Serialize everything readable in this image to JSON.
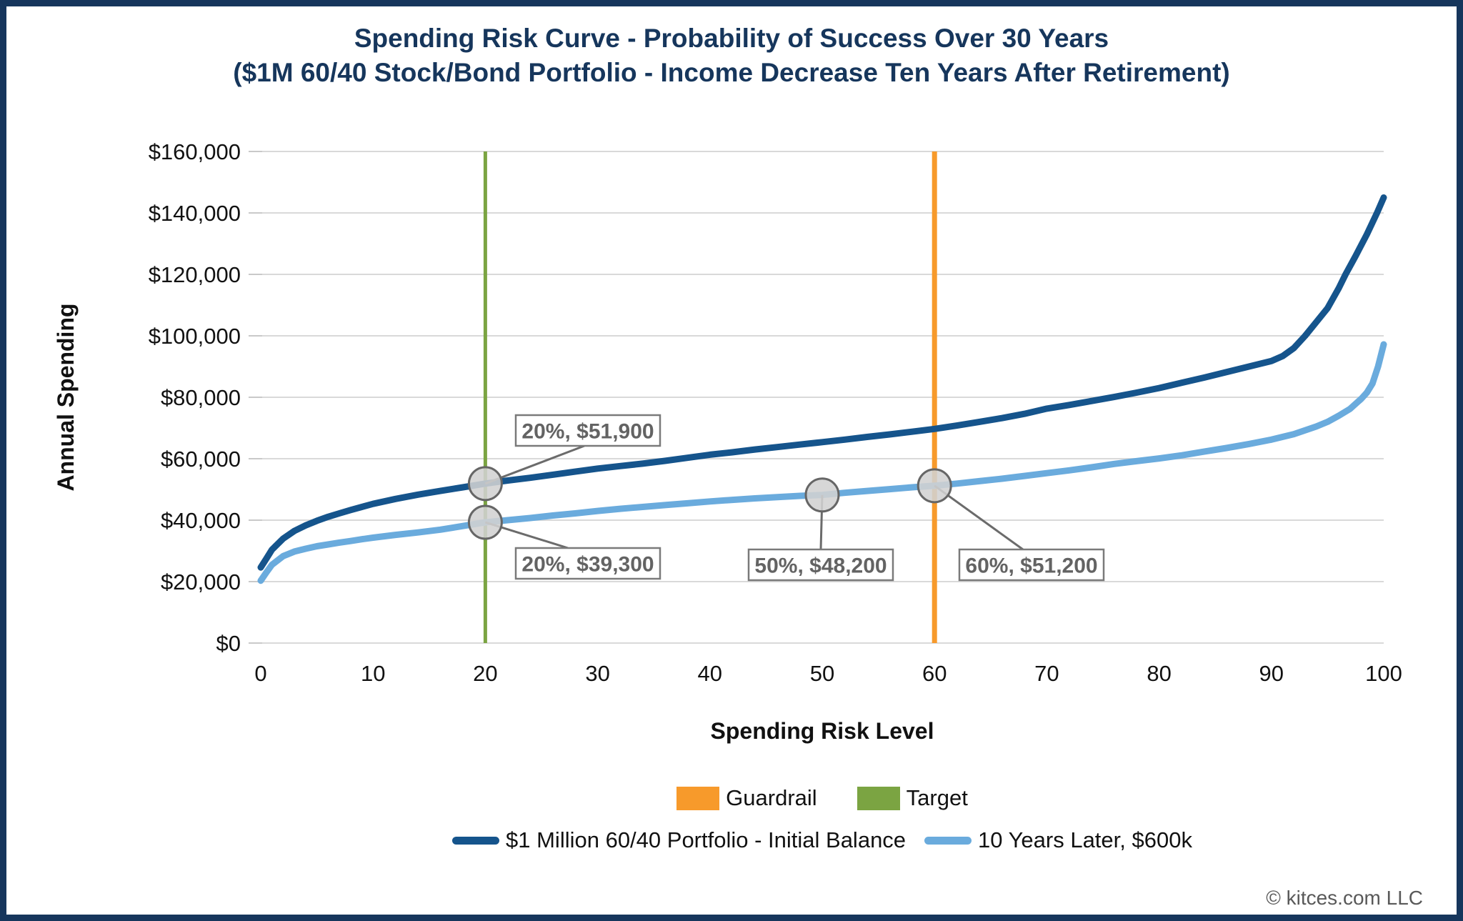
{
  "header": {
    "title_line1": "Spending Risk Curve - Probability of Success Over 30 Years",
    "title_line2": "($1M 60/40 Stock/Bond Portfolio - Income Decrease Ten Years After Retirement)"
  },
  "footer": {
    "copyright": "© kitces.com LLC"
  },
  "colors": {
    "navy": "#16365c",
    "dark_blue": "#15548c",
    "light_blue": "#6aabdd",
    "orange": "#f79a2b",
    "green": "#7ba442",
    "gridline": "#d9d9d9",
    "tick_mark": "#c9c9c9",
    "axis_text": "#111111",
    "annotation_text": "#636363",
    "annotation_border": "#7a7a7a",
    "callout_line": "#6b6b6b",
    "marker_fill": "#d2d2d2",
    "marker_stroke": "#666666",
    "footer_gray": "#595959"
  },
  "legend": {
    "row1": [
      {
        "label": "Guardrail",
        "color": "#f79a2b"
      },
      {
        "label": "Target",
        "color": "#7ba442"
      }
    ],
    "row2": [
      {
        "label": "$1 Million 60/40 Portfolio - Initial Balance",
        "color": "#15548c"
      },
      {
        "label": "10 Years Later, $600k",
        "color": "#6aabdd"
      }
    ]
  },
  "chart_data": {
    "type": "line",
    "title": "Spending Risk Curve - Probability of Success Over 30 Years ($1M 60/40 Stock/Bond Portfolio - Income Decrease Ten Years After Retirement)",
    "xlabel": "Spending Risk Level",
    "ylabel": "Annual Spending",
    "xlim": [
      0,
      100
    ],
    "ylim": [
      0,
      160000
    ],
    "grid": "horizontal",
    "legend_position": "bottom",
    "x_ticks": [
      0,
      10,
      20,
      30,
      40,
      50,
      60,
      70,
      80,
      90,
      100
    ],
    "y_ticks": [
      {
        "value": 0,
        "label": "$0"
      },
      {
        "value": 20000,
        "label": "$20,000"
      },
      {
        "value": 40000,
        "label": "$40,000"
      },
      {
        "value": 60000,
        "label": "$60,000"
      },
      {
        "value": 80000,
        "label": "$80,000"
      },
      {
        "value": 100000,
        "label": "$100,000"
      },
      {
        "value": 120000,
        "label": "$120,000"
      },
      {
        "value": 140000,
        "label": "$140,000"
      },
      {
        "value": 160000,
        "label": "$160,000"
      }
    ],
    "vlines": [
      {
        "name": "Target",
        "x": 20,
        "color": "#7ba442",
        "width": 5
      },
      {
        "name": "Guardrail",
        "x": 60,
        "color": "#f79a2b",
        "width": 7
      }
    ],
    "series": [
      {
        "name": "$1 Million 60/40 Portfolio - Initial Balance",
        "color": "#15548c",
        "points": [
          [
            0,
            24600
          ],
          [
            0.5,
            27500
          ],
          [
            1,
            30400
          ],
          [
            2,
            34000
          ],
          [
            3,
            36500
          ],
          [
            4,
            38300
          ],
          [
            5,
            39800
          ],
          [
            6,
            41100
          ],
          [
            7,
            42200
          ],
          [
            8,
            43300
          ],
          [
            9,
            44300
          ],
          [
            10,
            45300
          ],
          [
            12,
            46900
          ],
          [
            14,
            48300
          ],
          [
            16,
            49500
          ],
          [
            18,
            50700
          ],
          [
            20,
            51900
          ],
          [
            22,
            52900
          ],
          [
            24,
            53800
          ],
          [
            26,
            54800
          ],
          [
            28,
            55800
          ],
          [
            30,
            56800
          ],
          [
            32,
            57600
          ],
          [
            34,
            58400
          ],
          [
            36,
            59300
          ],
          [
            38,
            60300
          ],
          [
            40,
            61300
          ],
          [
            42,
            62100
          ],
          [
            44,
            63000
          ],
          [
            46,
            63800
          ],
          [
            48,
            64600
          ],
          [
            50,
            65400
          ],
          [
            52,
            66200
          ],
          [
            54,
            67100
          ],
          [
            56,
            67900
          ],
          [
            58,
            68800
          ],
          [
            60,
            69700
          ],
          [
            62,
            70800
          ],
          [
            64,
            72000
          ],
          [
            66,
            73200
          ],
          [
            68,
            74600
          ],
          [
            70,
            76300
          ],
          [
            72,
            77500
          ],
          [
            74,
            78800
          ],
          [
            76,
            80100
          ],
          [
            78,
            81500
          ],
          [
            80,
            83000
          ],
          [
            82,
            84700
          ],
          [
            84,
            86400
          ],
          [
            86,
            88200
          ],
          [
            88,
            90000
          ],
          [
            90,
            91800
          ],
          [
            91,
            93400
          ],
          [
            92,
            96000
          ],
          [
            93,
            100000
          ],
          [
            94,
            104500
          ],
          [
            95,
            109000
          ],
          [
            96,
            115500
          ],
          [
            96.6,
            120000
          ],
          [
            97.5,
            126000
          ],
          [
            98.5,
            133000
          ],
          [
            99.4,
            140000
          ],
          [
            100,
            145000
          ]
        ]
      },
      {
        "name": "10 Years Later, $600k",
        "color": "#6aabdd",
        "points": [
          [
            0,
            20300
          ],
          [
            0.5,
            23000
          ],
          [
            1,
            25500
          ],
          [
            2,
            28300
          ],
          [
            3,
            29800
          ],
          [
            4,
            30700
          ],
          [
            5,
            31500
          ],
          [
            6,
            32100
          ],
          [
            7,
            32700
          ],
          [
            8,
            33200
          ],
          [
            9,
            33800
          ],
          [
            10,
            34300
          ],
          [
            12,
            35200
          ],
          [
            14,
            36000
          ],
          [
            16,
            36900
          ],
          [
            18,
            38100
          ],
          [
            20,
            39300
          ],
          [
            22,
            40000
          ],
          [
            24,
            40700
          ],
          [
            26,
            41500
          ],
          [
            28,
            42200
          ],
          [
            30,
            43000
          ],
          [
            32,
            43700
          ],
          [
            34,
            44300
          ],
          [
            36,
            44900
          ],
          [
            38,
            45500
          ],
          [
            40,
            46100
          ],
          [
            42,
            46600
          ],
          [
            44,
            47100
          ],
          [
            46,
            47500
          ],
          [
            48,
            47900
          ],
          [
            50,
            48200
          ],
          [
            52,
            48900
          ],
          [
            54,
            49500
          ],
          [
            56,
            50100
          ],
          [
            58,
            50700
          ],
          [
            60,
            51200
          ],
          [
            62,
            51900
          ],
          [
            64,
            52700
          ],
          [
            66,
            53500
          ],
          [
            68,
            54400
          ],
          [
            70,
            55300
          ],
          [
            72,
            56200
          ],
          [
            74,
            57200
          ],
          [
            76,
            58300
          ],
          [
            78,
            59200
          ],
          [
            80,
            60100
          ],
          [
            82,
            61100
          ],
          [
            84,
            62300
          ],
          [
            86,
            63500
          ],
          [
            88,
            64800
          ],
          [
            90,
            66200
          ],
          [
            92,
            68000
          ],
          [
            94,
            70500
          ],
          [
            95,
            72000
          ],
          [
            96,
            74000
          ],
          [
            97,
            76200
          ],
          [
            98,
            79500
          ],
          [
            98.5,
            81500
          ],
          [
            99,
            84500
          ],
          [
            99.5,
            90000
          ],
          [
            100,
            97200
          ]
        ]
      }
    ],
    "annotations": [
      {
        "label": "20%, $51,900",
        "x": 20,
        "value": 51900,
        "series": "$1 Million 60/40 Portfolio - Initial Balance"
      },
      {
        "label": "20%, $39,300",
        "x": 20,
        "value": 39300,
        "series": "10 Years Later, $600k"
      },
      {
        "label": "50%, $48,200",
        "x": 50,
        "value": 48200,
        "series": "10 Years Later, $600k"
      },
      {
        "label": "60%, $51,200",
        "x": 60,
        "value": 51200,
        "series": "10 Years Later, $600k"
      }
    ]
  }
}
